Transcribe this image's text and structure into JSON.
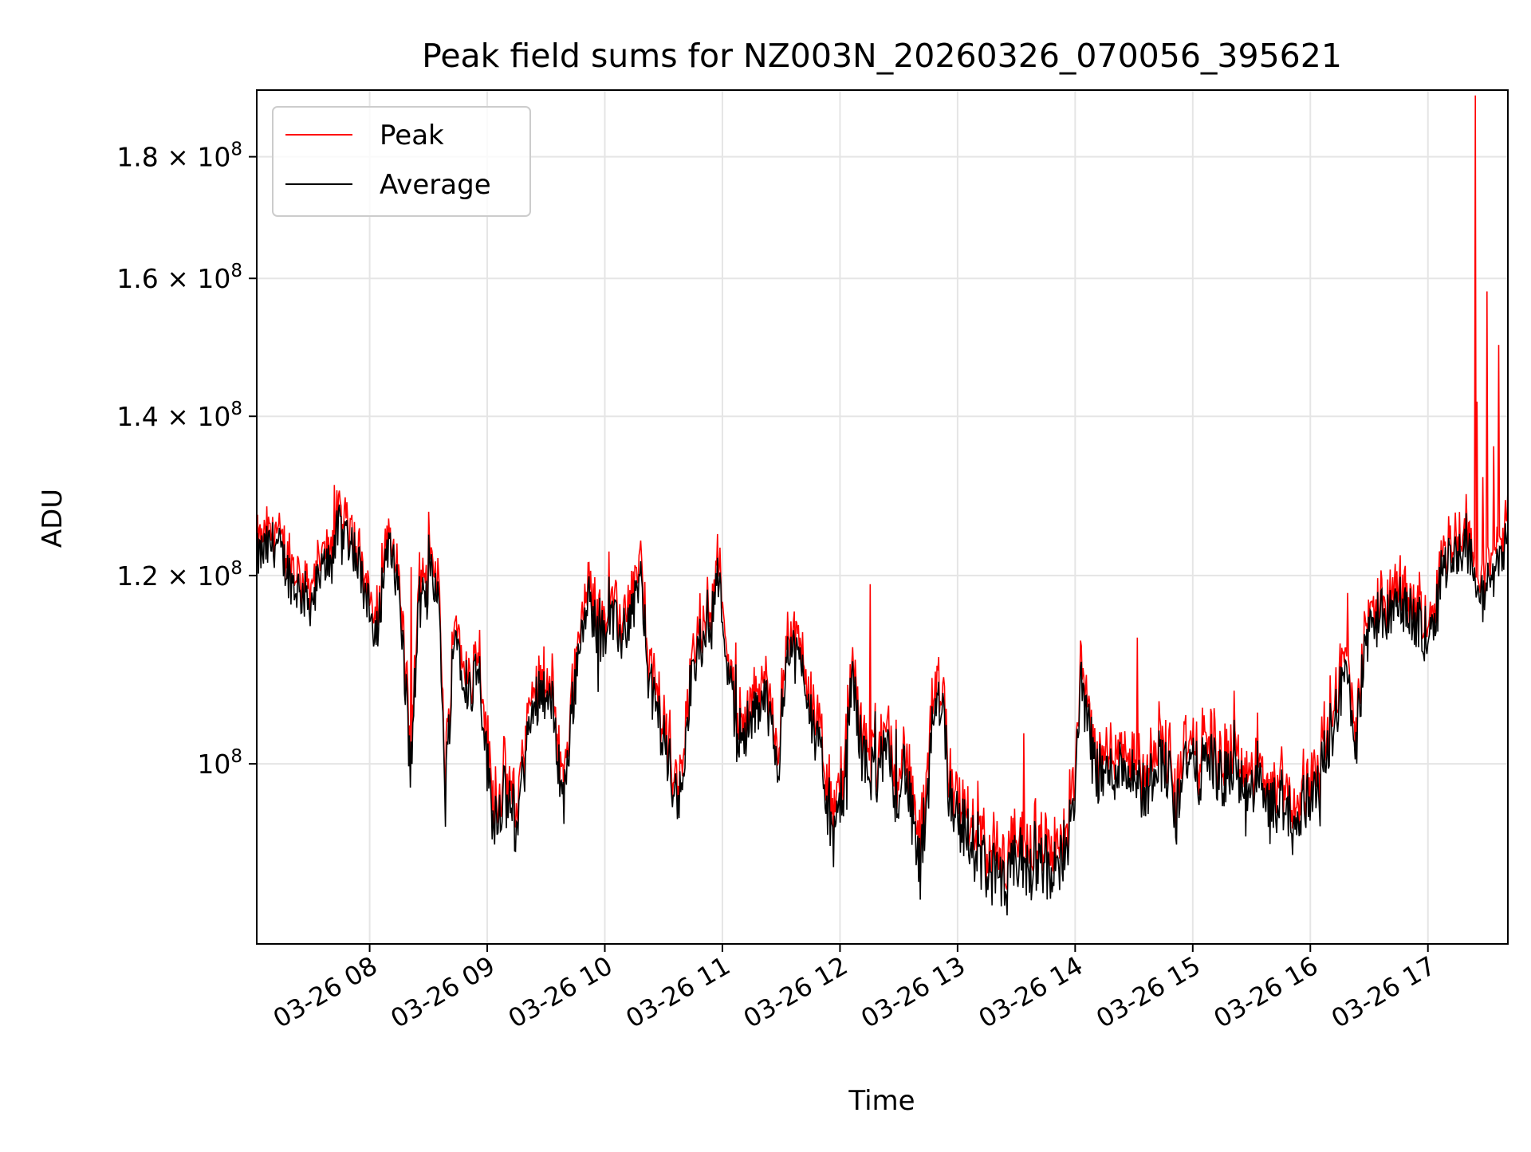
{
  "chart_data": {
    "type": "line",
    "title": "Peak field sums for NZ003N_20260326_070056_395621",
    "xlabel": "Time",
    "ylabel": "ADU",
    "y_scale": "log",
    "xlim_hours": [
      7.04,
      17.68
    ],
    "ylim": [
      84000000,
      192000000
    ],
    "x_tick_hours": [
      8,
      9,
      10,
      11,
      12,
      13,
      14,
      15,
      16,
      17
    ],
    "x_tick_labels": [
      "03-26 08",
      "03-26 09",
      "03-26 10",
      "03-26 11",
      "03-26 12",
      "03-26 13",
      "03-26 14",
      "03-26 15",
      "03-26 16",
      "03-26 17"
    ],
    "y_ticks": [
      {
        "value": 100000000,
        "mantissa": "",
        "base": "10",
        "exponent": "8"
      },
      {
        "value": 120000000,
        "mantissa": "1.2 × ",
        "base": "10",
        "exponent": "8"
      },
      {
        "value": 140000000,
        "mantissa": "1.4 × ",
        "base": "10",
        "exponent": "8"
      },
      {
        "value": 160000000,
        "mantissa": "1.6 × ",
        "base": "10",
        "exponent": "8"
      },
      {
        "value": 180000000,
        "mantissa": "1.8 × ",
        "base": "10",
        "exponent": "8"
      }
    ],
    "grid": true,
    "legend_position": "upper-left",
    "series": [
      {
        "name": "Peak",
        "color": "#ff0000"
      },
      {
        "name": "Average",
        "color": "#000000"
      }
    ],
    "average_points": [
      [
        7.04,
        122
      ],
      [
        7.2,
        124
      ],
      [
        7.35,
        119
      ],
      [
        7.5,
        117
      ],
      [
        7.65,
        122
      ],
      [
        7.75,
        126
      ],
      [
        7.85,
        124
      ],
      [
        7.95,
        119
      ],
      [
        8.05,
        112
      ],
      [
        8.15,
        124
      ],
      [
        8.25,
        118
      ],
      [
        8.32,
        105
      ],
      [
        8.35,
        99
      ],
      [
        8.42,
        117
      ],
      [
        8.5,
        117
      ],
      [
        8.5,
        124
      ],
      [
        8.6,
        115
      ],
      [
        8.64,
        96
      ],
      [
        8.72,
        114
      ],
      [
        8.85,
        107
      ],
      [
        8.92,
        111
      ],
      [
        9.0,
        100
      ],
      [
        9.05,
        95
      ],
      [
        9.15,
        97
      ],
      [
        9.25,
        94
      ],
      [
        9.35,
        103
      ],
      [
        9.45,
        108
      ],
      [
        9.55,
        106
      ],
      [
        9.65,
        96
      ],
      [
        9.7,
        103
      ],
      [
        9.78,
        112
      ],
      [
        9.85,
        118
      ],
      [
        9.95,
        113
      ],
      [
        10.05,
        115
      ],
      [
        10.15,
        113
      ],
      [
        10.25,
        117
      ],
      [
        10.3,
        120
      ],
      [
        10.38,
        108
      ],
      [
        10.45,
        105
      ],
      [
        10.55,
        100
      ],
      [
        10.62,
        95
      ],
      [
        10.72,
        107
      ],
      [
        10.8,
        112
      ],
      [
        10.9,
        115
      ],
      [
        10.95,
        121
      ],
      [
        11.05,
        110
      ],
      [
        11.12,
        103
      ],
      [
        11.25,
        104
      ],
      [
        11.35,
        107
      ],
      [
        11.42,
        104
      ],
      [
        11.48,
        100
      ],
      [
        11.55,
        113
      ],
      [
        11.62,
        111
      ],
      [
        11.7,
        109
      ],
      [
        11.8,
        102
      ],
      [
        11.9,
        97
      ],
      [
        11.95,
        92
      ],
      [
        12.05,
        100
      ],
      [
        12.1,
        109
      ],
      [
        12.2,
        100
      ],
      [
        12.3,
        99
      ],
      [
        12.4,
        101
      ],
      [
        12.48,
        97
      ],
      [
        12.55,
        100
      ],
      [
        12.62,
        94
      ],
      [
        12.68,
        90
      ],
      [
        12.75,
        96
      ],
      [
        12.8,
        107
      ],
      [
        12.88,
        106
      ],
      [
        12.92,
        98
      ],
      [
        13.0,
        95
      ],
      [
        13.1,
        93
      ],
      [
        13.2,
        91
      ],
      [
        13.3,
        90
      ],
      [
        13.4,
        88
      ],
      [
        13.5,
        91
      ],
      [
        13.6,
        90
      ],
      [
        13.7,
        92
      ],
      [
        13.8,
        89
      ],
      [
        13.9,
        92
      ],
      [
        14.0,
        96
      ],
      [
        14.05,
        110
      ],
      [
        14.12,
        101
      ],
      [
        14.2,
        99
      ],
      [
        14.3,
        99
      ],
      [
        14.4,
        100
      ],
      [
        14.5,
        99
      ],
      [
        14.6,
        97
      ],
      [
        14.7,
        101
      ],
      [
        14.8,
        99
      ],
      [
        14.85,
        94
      ],
      [
        14.92,
        101
      ],
      [
        15.05,
        99
      ],
      [
        15.15,
        101
      ],
      [
        15.25,
        98
      ],
      [
        15.35,
        100
      ],
      [
        15.45,
        96
      ],
      [
        15.55,
        98
      ],
      [
        15.65,
        95
      ],
      [
        15.75,
        97
      ],
      [
        15.83,
        95
      ],
      [
        15.88,
        93
      ],
      [
        15.92,
        96
      ],
      [
        16.0,
        97
      ],
      [
        16.1,
        100
      ],
      [
        16.2,
        104
      ],
      [
        16.3,
        110
      ],
      [
        16.38,
        101
      ],
      [
        16.45,
        110
      ],
      [
        16.55,
        116
      ],
      [
        16.65,
        115
      ],
      [
        16.75,
        117
      ],
      [
        16.85,
        116
      ],
      [
        16.95,
        113
      ],
      [
        17.05,
        115
      ],
      [
        17.12,
        121
      ],
      [
        17.25,
        123
      ],
      [
        17.35,
        123
      ],
      [
        17.45,
        117
      ],
      [
        17.55,
        120
      ],
      [
        17.68,
        125
      ]
    ],
    "peak_spikes": [
      [
        7.7,
        131
      ],
      [
        8.35,
        121
      ],
      [
        10.3,
        123
      ],
      [
        12.26,
        119
      ],
      [
        13.56,
        103
      ],
      [
        14.53,
        113
      ],
      [
        16.32,
        118
      ],
      [
        17.02,
        117
      ],
      [
        17.4,
        191
      ],
      [
        17.42,
        142
      ],
      [
        17.47,
        132
      ],
      [
        17.5,
        158
      ],
      [
        17.56,
        136
      ],
      [
        17.6,
        150
      ],
      [
        17.68,
        131
      ]
    ]
  }
}
